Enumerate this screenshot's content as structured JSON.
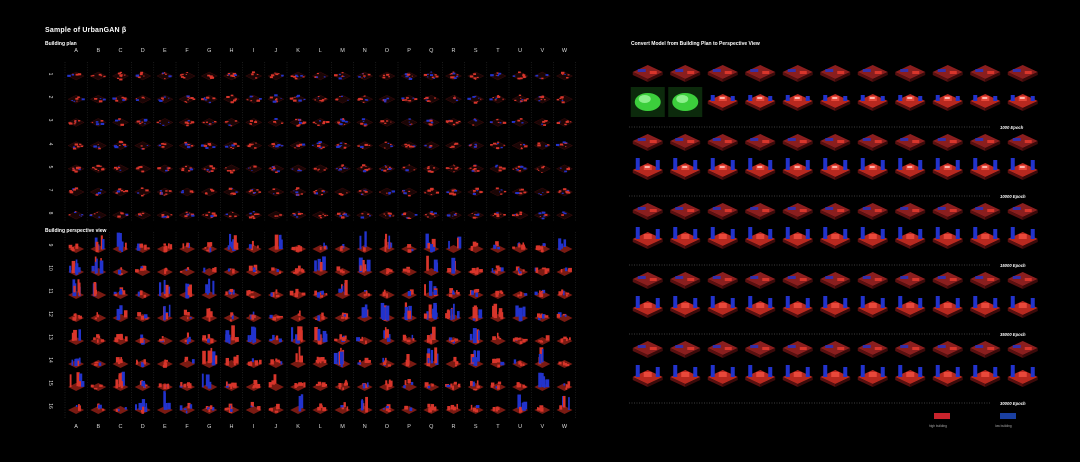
{
  "title": "Sample of UrbanGAN  β",
  "left_panel": {
    "plan_label": "Building plan",
    "perspective_label": "Building perspective view",
    "columns": [
      "A",
      "B",
      "C",
      "D",
      "E",
      "F",
      "G",
      "H",
      "I",
      "J",
      "K",
      "L",
      "M",
      "N",
      "O",
      "P",
      "Q",
      "R",
      "S",
      "T",
      "U",
      "V",
      "W"
    ],
    "plan_rows": [
      "1",
      "2",
      "3",
      "4",
      "5",
      "7",
      "8"
    ],
    "persp_rows": [
      "9",
      "10",
      "11",
      "12",
      "13",
      "14",
      "15",
      "16"
    ]
  },
  "right_panel": {
    "title": "Convert Model from Building Plan to Perspective View",
    "epochs": [
      "1000 Epoch",
      "10000 Epoch",
      "15000 Epoch",
      "35000 Epoch",
      "30000 Epoch"
    ],
    "legend": [
      {
        "label": "high building",
        "color": "#c8232c"
      },
      {
        "label": "low building",
        "color": "#1a3fa0"
      }
    ]
  },
  "colors": {
    "red": "#d8352b",
    "blue": "#2233cc",
    "green": "#3ccf3c",
    "grid": "#333333"
  }
}
